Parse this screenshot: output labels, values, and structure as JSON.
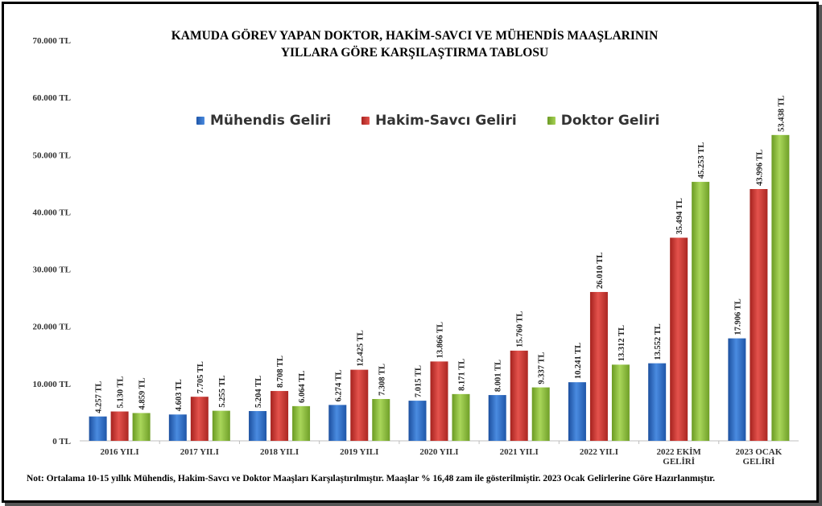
{
  "title_line1": "KAMUDA GÖREV YAPAN DOKTOR, HAKİM-SAVCI VE MÜHENDİS MAAŞLARININ",
  "title_line2": "YILLARA GÖRE KARŞILAŞTIRMA TABLOSU",
  "note": "Not: Ortalama 10-15 yıllık Mühendis, Hakim-Savcı ve Doktor Maaşları Karşılaştırılmıştır. Maaşlar % 16,48 zam ile gösterilmiştir. 2023 Ocak Gelirlerine Göre Hazırlanmıştır.",
  "chart_data": {
    "type": "bar",
    "categories": [
      "2016 YILI",
      "2017 YILI",
      "2018 YILI",
      "2019 YILI",
      "2020 YILI",
      "2021 YILI",
      "2022 YILI",
      "2022 EKİM GELİRİ",
      "2023 OCAK GELİRİ"
    ],
    "series": [
      {
        "name": "Mühendis Geliri",
        "color": "#2f6fc6",
        "values": [
          4257,
          4603,
          5204,
          6274,
          7015,
          8001,
          10241,
          13552,
          17906
        ],
        "labels": [
          "4.257 TL",
          "4.603 TL",
          "5.204 TL",
          "6.274 TL",
          "7.015 TL",
          "8.001 TL",
          "10.241 TL",
          "13.552 TL",
          "17.906 TL"
        ]
      },
      {
        "name": "Hakim-Savcı Geliri",
        "color": "#d23a35",
        "values": [
          5130,
          7705,
          8708,
          12425,
          13866,
          15760,
          26010,
          35494,
          43996
        ],
        "labels": [
          "5.130 TL",
          "7.705 TL",
          "8.708 TL",
          "12.425 TL",
          "13.866 TL",
          "15.760 TL",
          "26.010 TL",
          "35.494 TL",
          "43.996 TL"
        ]
      },
      {
        "name": "Doktor Geliri",
        "color": "#8fc13e",
        "values": [
          4859,
          5255,
          6064,
          7308,
          8171,
          9337,
          13312,
          45253,
          53438
        ],
        "labels": [
          "4.859 TL",
          "5.255 TL",
          "6.064 TL",
          "7.308 TL",
          "8.171 TL",
          "9.337 TL",
          "13.312 TL",
          "45.253 TL",
          "53.438 TL"
        ]
      }
    ],
    "ylim": [
      0,
      70000
    ],
    "yticks": [
      0,
      10000,
      20000,
      30000,
      40000,
      50000,
      60000,
      70000
    ],
    "ytick_labels": [
      "0 TL",
      "10.000 TL",
      "20.000 TL",
      "30.000 TL",
      "40.000 TL",
      "50.000 TL",
      "60.000 TL",
      "70.000 TL"
    ],
    "grid": false,
    "legend_position": "top-center"
  }
}
